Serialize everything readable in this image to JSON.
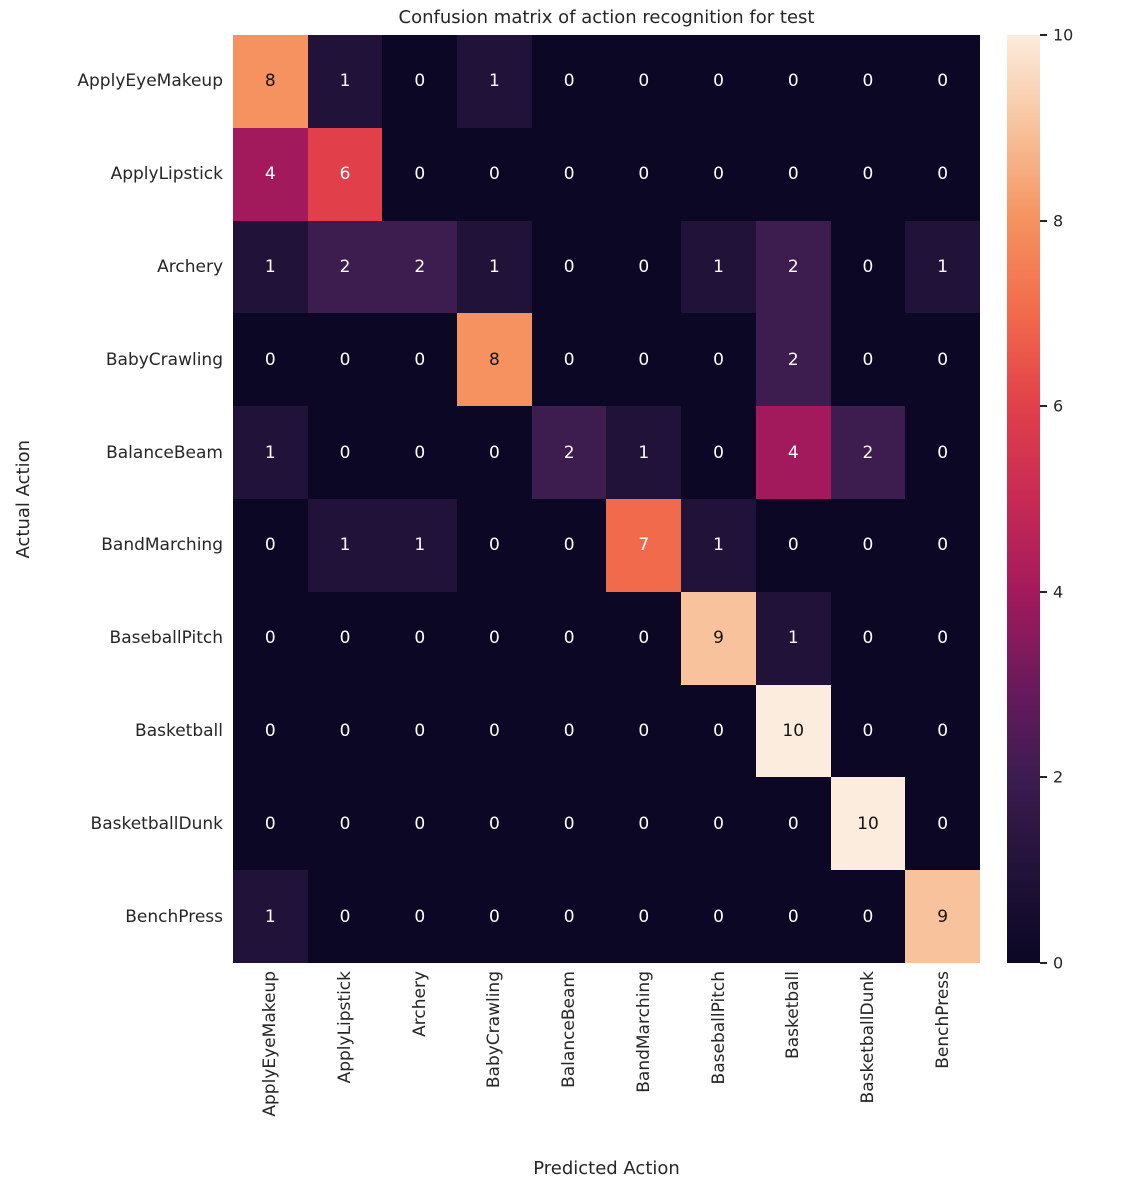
{
  "figure": {
    "title": "Confusion matrix of action recognition for test",
    "xlabel": "Predicted Action",
    "ylabel": "Actual Action"
  },
  "chart_data": {
    "type": "heatmap",
    "title": "Confusion matrix of action recognition for test",
    "xlabel": "Predicted Action",
    "ylabel": "Actual Action",
    "categories": [
      "ApplyEyeMakeup",
      "ApplyLipstick",
      "Archery",
      "BabyCrawling",
      "BalanceBeam",
      "BandMarching",
      "BaseballPitch",
      "Basketball",
      "BasketballDunk",
      "BenchPress"
    ],
    "matrix": [
      [
        8,
        1,
        0,
        1,
        0,
        0,
        0,
        0,
        0,
        0
      ],
      [
        4,
        6,
        0,
        0,
        0,
        0,
        0,
        0,
        0,
        0
      ],
      [
        1,
        2,
        2,
        1,
        0,
        0,
        1,
        2,
        0,
        1
      ],
      [
        0,
        0,
        0,
        8,
        0,
        0,
        0,
        2,
        0,
        0
      ],
      [
        1,
        0,
        0,
        0,
        2,
        1,
        0,
        4,
        2,
        0
      ],
      [
        0,
        1,
        1,
        0,
        0,
        7,
        1,
        0,
        0,
        0
      ],
      [
        0,
        0,
        0,
        0,
        0,
        0,
        9,
        1,
        0,
        0
      ],
      [
        0,
        0,
        0,
        0,
        0,
        0,
        0,
        10,
        0,
        0
      ],
      [
        0,
        0,
        0,
        0,
        0,
        0,
        0,
        0,
        10,
        0
      ],
      [
        1,
        0,
        0,
        0,
        0,
        0,
        0,
        0,
        0,
        9
      ]
    ],
    "colorbar": {
      "min": 0,
      "max": 10,
      "ticks": [
        0,
        2,
        4,
        6,
        8,
        10
      ]
    },
    "colormap": {
      "name": "rocket",
      "stops": [
        "#0b0724",
        "#211239",
        "#3d1c50",
        "#6b1a5c",
        "#a31a5c",
        "#c72a54",
        "#e1404a",
        "#f26a4c",
        "#f5925f",
        "#f7c29c",
        "#fcecdd"
      ]
    },
    "legend_position": "right-colorbar",
    "grid": false
  }
}
